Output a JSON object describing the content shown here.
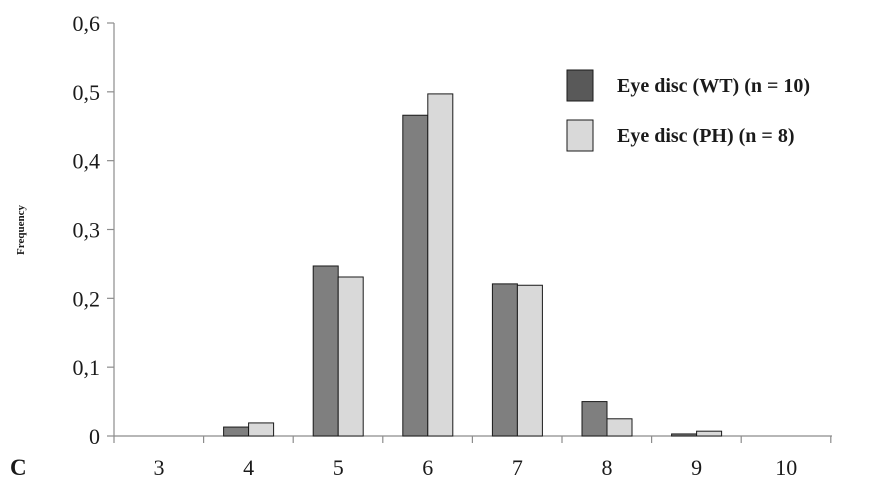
{
  "panel_label": "C",
  "chart_data": {
    "type": "bar",
    "title": "",
    "xlabel": "",
    "ylabel": "Frequency",
    "categories": [
      "3",
      "4",
      "5",
      "6",
      "7",
      "8",
      "9",
      "10"
    ],
    "ylim": [
      0,
      0.6
    ],
    "y_ticks": [
      0,
      0.1,
      0.2,
      0.3,
      0.4,
      0.5,
      0.6
    ],
    "y_tick_labels": [
      "0",
      "0,1",
      "0,2",
      "0,3",
      "0,4",
      "0,5",
      "0,6"
    ],
    "grid": false,
    "legend_position": "top-right",
    "series": [
      {
        "name": "Eye disc (WT) (n = 10)",
        "color": "#7f7f7f",
        "values": [
          0,
          0.013,
          0.247,
          0.466,
          0.221,
          0.05,
          0.003,
          0
        ]
      },
      {
        "name": "Eye disc (PH) (n = 8)",
        "color": "#d9d9d9",
        "values": [
          0,
          0.019,
          0.231,
          0.497,
          0.219,
          0.025,
          0.007,
          0
        ]
      }
    ],
    "legend_swatch_colors": [
      "#595959",
      "#d9d9d9"
    ]
  }
}
